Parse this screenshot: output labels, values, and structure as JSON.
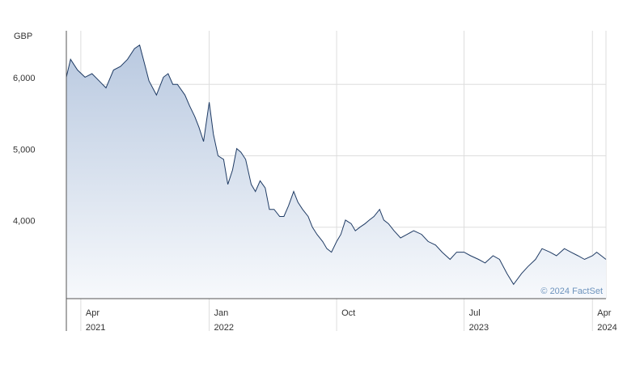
{
  "chart_data": {
    "type": "area",
    "unit_label": "GBP",
    "credit": "© 2024 FactSet",
    "ylim": [
      3000,
      6750
    ],
    "y_ticks": [
      {
        "value": 6000,
        "label": "6,000"
      },
      {
        "value": 5000,
        "label": "5,000"
      },
      {
        "value": 4000,
        "label": "4,000"
      }
    ],
    "x_range": [
      "2021-03-01",
      "2024-04-30"
    ],
    "x_ticks": [
      {
        "date": "2021-04-01",
        "label": "Apr",
        "year": "2021"
      },
      {
        "date": "2022-01-01",
        "label": "Jan",
        "year": "2022"
      },
      {
        "date": "2022-10-01",
        "label": "Oct",
        "year": ""
      },
      {
        "date": "2023-07-01",
        "label": "Jul",
        "year": "2023"
      },
      {
        "date": "2024-04-01",
        "label": "Apr",
        "year": "2024"
      }
    ],
    "grid": true,
    "colors": {
      "line": "#1f3b64",
      "fill_top": "#b9c9e0",
      "fill_bottom": "#f7f9fc",
      "grid": "#dddddd",
      "axis": "#555555"
    },
    "series": [
      {
        "x": [
          "2021-03-01",
          "2021-03-10",
          "2021-03-25",
          "2021-04-10",
          "2021-04-25",
          "2021-05-10",
          "2021-05-25",
          "2021-06-10",
          "2021-06-25",
          "2021-07-10",
          "2021-07-25",
          "2021-08-05",
          "2021-08-15",
          "2021-08-25",
          "2021-09-10",
          "2021-09-25",
          "2021-10-05",
          "2021-10-15",
          "2021-10-25",
          "2021-11-10",
          "2021-11-20",
          "2021-12-01",
          "2021-12-10",
          "2021-12-20",
          "2022-01-01",
          "2022-01-10",
          "2022-01-20",
          "2022-02-01",
          "2022-02-10",
          "2022-02-20",
          "2022-03-01",
          "2022-03-10",
          "2022-03-20",
          "2022-04-01",
          "2022-04-10",
          "2022-04-20",
          "2022-05-01",
          "2022-05-10",
          "2022-05-20",
          "2022-06-01",
          "2022-06-10",
          "2022-06-20",
          "2022-07-01",
          "2022-07-10",
          "2022-07-20",
          "2022-08-01",
          "2022-08-10",
          "2022-08-20",
          "2022-09-01",
          "2022-09-10",
          "2022-09-20",
          "2022-10-01",
          "2022-10-10",
          "2022-10-20",
          "2022-11-01",
          "2022-11-10",
          "2022-11-20",
          "2022-12-01",
          "2022-12-10",
          "2022-12-20",
          "2023-01-01",
          "2023-01-10",
          "2023-01-20",
          "2023-02-01",
          "2023-02-15",
          "2023-03-01",
          "2023-03-15",
          "2023-04-01",
          "2023-04-15",
          "2023-05-01",
          "2023-05-15",
          "2023-06-01",
          "2023-06-15",
          "2023-07-01",
          "2023-07-15",
          "2023-08-01",
          "2023-08-15",
          "2023-09-01",
          "2023-09-15",
          "2023-10-01",
          "2023-10-15",
          "2023-11-01",
          "2023-11-15",
          "2023-12-01",
          "2023-12-15",
          "2024-01-01",
          "2024-01-15",
          "2024-02-01",
          "2024-02-15",
          "2024-03-01",
          "2024-03-15",
          "2024-04-01",
          "2024-04-10",
          "2024-04-20",
          "2024-04-30"
        ],
        "y": [
          6100,
          6350,
          6200,
          6100,
          6150,
          6050,
          5950,
          6200,
          6250,
          6350,
          6500,
          6550,
          6300,
          6050,
          5850,
          6100,
          6150,
          6000,
          6000,
          5850,
          5700,
          5550,
          5400,
          5200,
          5750,
          5300,
          5000,
          4950,
          4600,
          4800,
          5100,
          5050,
          4950,
          4600,
          4500,
          4650,
          4550,
          4250,
          4250,
          4150,
          4150,
          4300,
          4500,
          4350,
          4250,
          4150,
          4000,
          3900,
          3800,
          3700,
          3650,
          3800,
          3900,
          4100,
          4050,
          3950,
          4000,
          4050,
          4100,
          4150,
          4250,
          4100,
          4050,
          3950,
          3850,
          3900,
          3950,
          3900,
          3800,
          3750,
          3650,
          3550,
          3650,
          3650,
          3600,
          3550,
          3500,
          3600,
          3550,
          3350,
          3200,
          3350,
          3450,
          3550,
          3700,
          3650,
          3600,
          3700,
          3650,
          3600,
          3550,
          3600,
          3650,
          3600,
          3550
        ]
      }
    ]
  }
}
